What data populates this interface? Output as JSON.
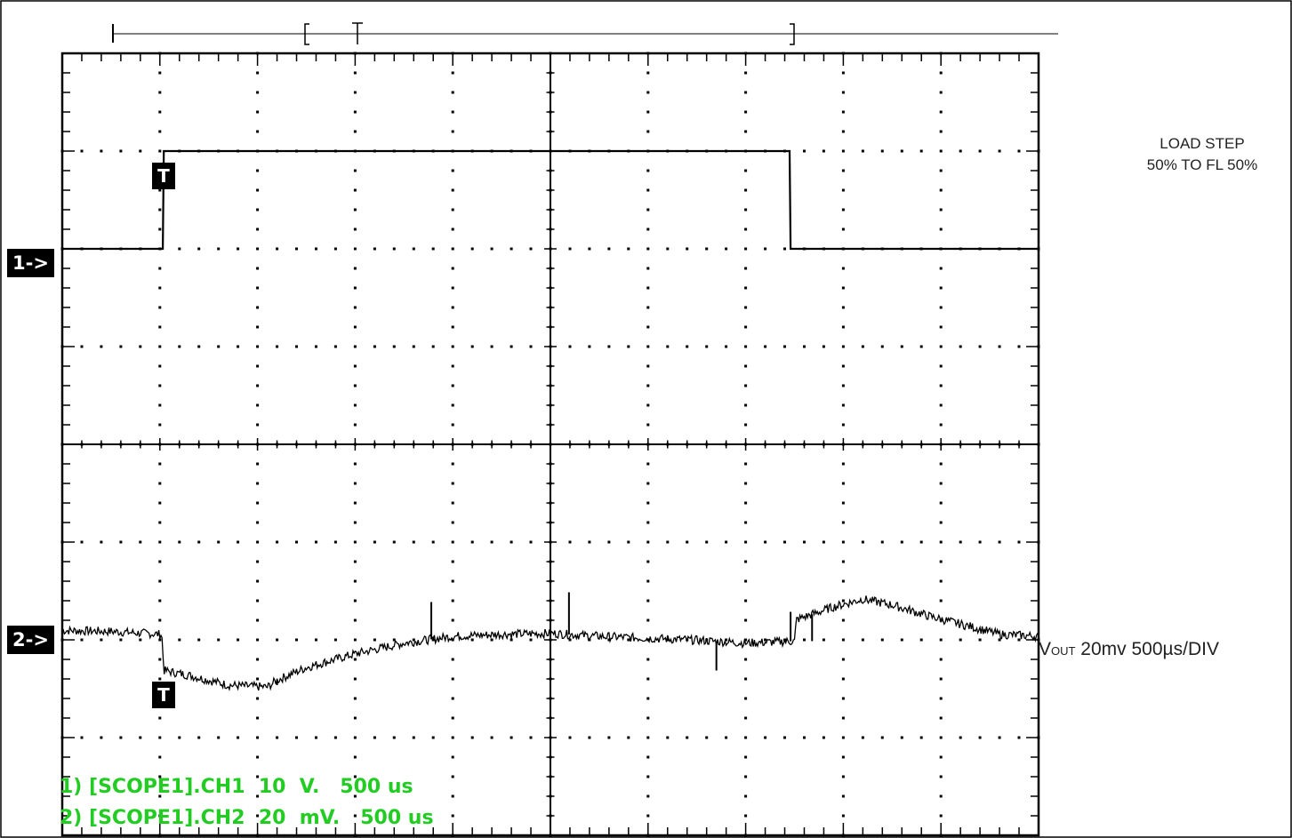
{
  "chart_data": {
    "type": "line",
    "title": "",
    "grid": true,
    "divisions": {
      "x": 10,
      "y": 8
    },
    "time_per_div_us": 500,
    "channels": [
      {
        "name": "CH1",
        "marker": "1->",
        "scale_label": "1) [SCOPE1].CH1  10  V.   500 us",
        "volts_per_div": 10,
        "level_ref": "low",
        "points_div": [
          [
            0,
            0
          ],
          [
            1.03,
            0
          ],
          [
            1.04,
            1
          ],
          [
            7.45,
            1
          ],
          [
            7.46,
            0
          ],
          [
            10,
            0
          ]
        ]
      },
      {
        "name": "CH2",
        "marker": "2->",
        "scale_label": "2) [SCOPE1].CH2  20  mV.   500 us",
        "mv_per_div": 20,
        "points_div": [
          [
            0,
            0.06
          ],
          [
            0.5,
            0.05
          ],
          [
            1.02,
            0.02
          ],
          [
            1.04,
            -0.35
          ],
          [
            1.3,
            -0.4
          ],
          [
            1.7,
            -0.5
          ],
          [
            2.1,
            -0.52
          ],
          [
            2.2,
            -0.45
          ],
          [
            2.5,
            -0.32
          ],
          [
            3.0,
            -0.18
          ],
          [
            3.5,
            -0.07
          ],
          [
            4.0,
            0.0
          ],
          [
            4.5,
            0.02
          ],
          [
            5.0,
            0.03
          ],
          [
            5.5,
            0.0
          ],
          [
            6.0,
            -0.02
          ],
          [
            6.5,
            -0.04
          ],
          [
            7.0,
            -0.07
          ],
          [
            7.5,
            -0.05
          ],
          [
            7.52,
            0.17
          ],
          [
            7.9,
            0.3
          ],
          [
            8.2,
            0.38
          ],
          [
            8.5,
            0.32
          ],
          [
            8.9,
            0.2
          ],
          [
            9.3,
            0.1
          ],
          [
            9.6,
            0.02
          ],
          [
            10,
            0.0
          ]
        ],
        "spikes": [
          [
            2.2,
            -0.5
          ],
          [
            3.78,
            0.35
          ],
          [
            5.19,
            0.45
          ],
          [
            6.7,
            -0.35
          ],
          [
            7.46,
            0.25
          ],
          [
            7.68,
            -0.05
          ]
        ]
      }
    ],
    "trigger": {
      "label": "T",
      "x_div": 1.03
    }
  },
  "notes": {
    "load_step_line1": "LOAD STEP",
    "load_step_line2": "50%  TO FL 50%",
    "vout_main": "V",
    "vout_sub": "OUT",
    "vout_rest": "  20mv 500µs/DIV"
  },
  "markers": {
    "ch1": "1->",
    "ch2": "2->",
    "trigger": "T"
  },
  "readouts": {
    "ch1": "1) [SCOPE1].CH1  10  V.   500 us",
    "ch2": "2) [SCOPE1].CH2  20  mV.   500 us"
  },
  "colors": {
    "trace": "#000000",
    "grid": "#000000",
    "readout": "#22cc22"
  }
}
